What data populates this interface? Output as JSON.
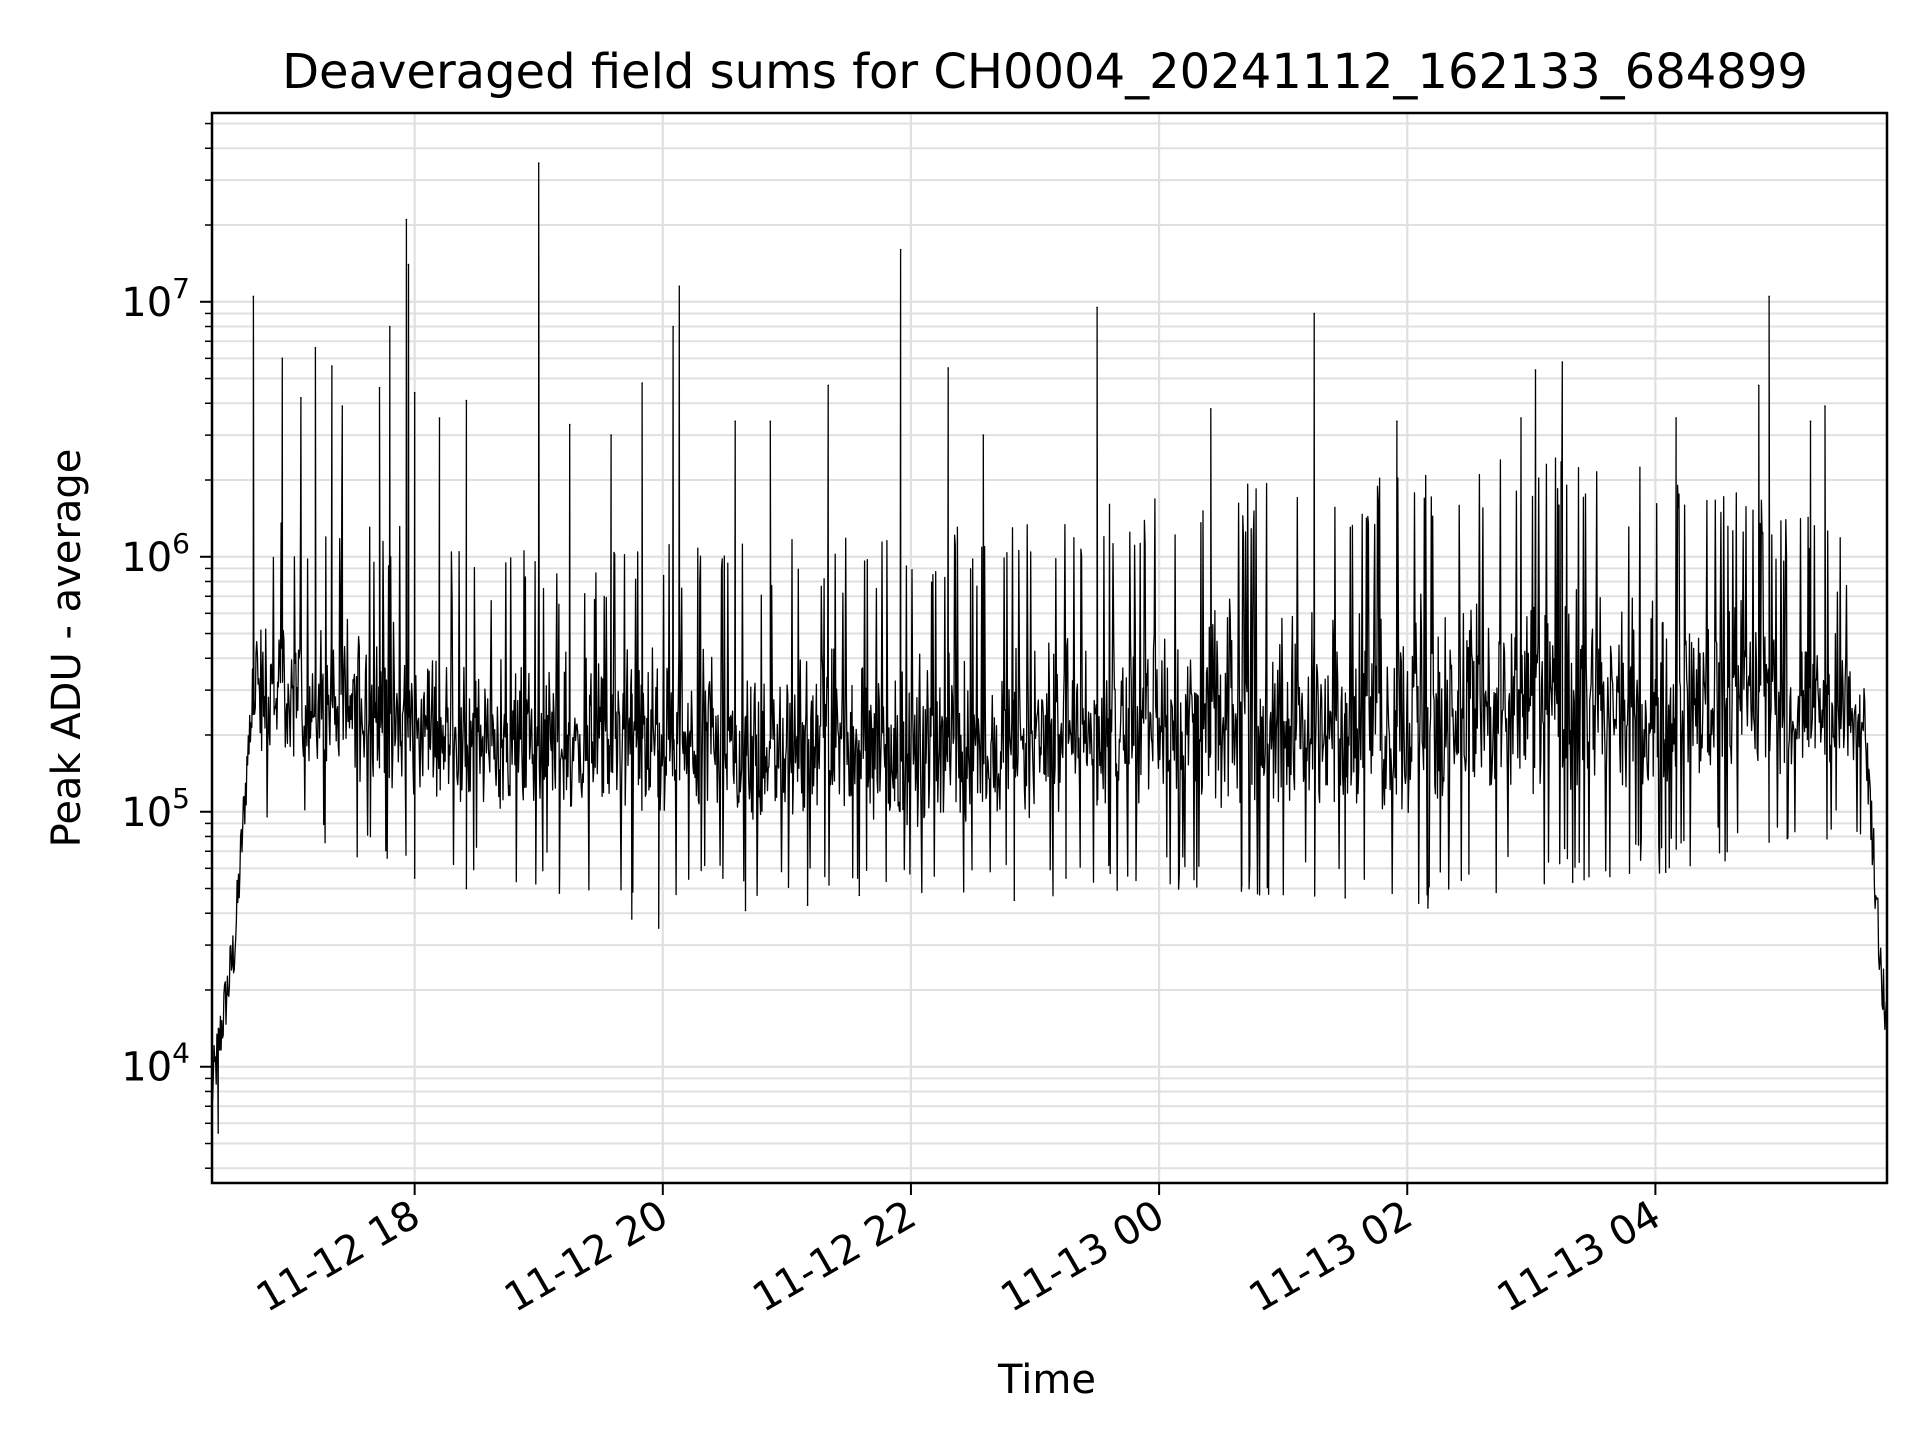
{
  "chart_data": {
    "type": "line",
    "title": "Deaveraged field sums for CH0004_20241112_162133_684899",
    "xlabel": "Time",
    "ylabel": "Peak ADU - average",
    "yscale": "log",
    "ylim": [
      3500,
      55000000
    ],
    "xlim": [
      "2024-11-12 16:22",
      "2024-11-13 05:52"
    ],
    "grid": true,
    "line_color": "#000000",
    "grid_color": "#e0e0e0",
    "x_ticks": [
      {
        "value": "2024-11-12 18:00",
        "label": "11-12 18"
      },
      {
        "value": "2024-11-12 20:00",
        "label": "11-12 20"
      },
      {
        "value": "2024-11-12 22:00",
        "label": "11-12 22"
      },
      {
        "value": "2024-11-13 00:00",
        "label": "11-13 00"
      },
      {
        "value": "2024-11-13 02:00",
        "label": "11-13 02"
      },
      {
        "value": "2024-11-13 04:00",
        "label": "11-13 04"
      }
    ],
    "y_ticks": [
      {
        "value": 10000,
        "base": "10",
        "exp": "4"
      },
      {
        "value": 100000,
        "base": "10",
        "exp": "5"
      },
      {
        "value": 1000000,
        "base": "10",
        "exp": "6"
      },
      {
        "value": 10000000,
        "base": "10",
        "exp": "7"
      }
    ],
    "series": [
      {
        "baseline": [
          [
            "2024-11-12 16:22",
            8000
          ],
          [
            "2024-11-12 16:27",
            15000
          ],
          [
            "2024-11-12 16:33",
            30000
          ],
          [
            "2024-11-12 16:40",
            200000
          ],
          [
            "2024-11-12 16:50",
            450000
          ],
          [
            "2024-11-12 17:00",
            420000
          ],
          [
            "2024-11-12 17:20",
            350000
          ],
          [
            "2024-11-12 17:45",
            280000
          ],
          [
            "2024-11-12 18:00",
            230000
          ],
          [
            "2024-11-12 18:40",
            200000
          ],
          [
            "2024-11-12 19:20",
            210000
          ],
          [
            "2024-11-12 19:50",
            190000
          ],
          [
            "2024-11-12 20:30",
            170000
          ],
          [
            "2024-11-12 21:30",
            160000
          ],
          [
            "2024-11-12 22:30",
            165000
          ],
          [
            "2024-11-12 23:30",
            190000
          ],
          [
            "2024-11-13 00:00",
            230000
          ],
          [
            "2024-11-13 01:00",
            220000
          ],
          [
            "2024-11-13 02:00",
            230000
          ],
          [
            "2024-11-13 03:00",
            240000
          ],
          [
            "2024-11-13 04:00",
            260000
          ],
          [
            "2024-11-13 05:00",
            290000
          ],
          [
            "2024-11-13 05:35",
            420000
          ],
          [
            "2024-11-13 05:40",
            300000
          ],
          [
            "2024-11-13 05:45",
            80000
          ],
          [
            "2024-11-13 05:49",
            25000
          ],
          [
            "2024-11-13 05:52",
            13000
          ]
        ],
        "upper_envelope": [
          [
            "2024-11-12 16:40",
            900000
          ],
          [
            "2024-11-12 17:30",
            1000000
          ],
          [
            "2024-11-12 18:30",
            600000
          ],
          [
            "2024-11-12 20:00",
            700000
          ],
          [
            "2024-11-12 22:00",
            700000
          ],
          [
            "2024-11-12 23:30",
            900000
          ],
          [
            "2024-11-13 00:30",
            1100000
          ],
          [
            "2024-11-13 02:00",
            1300000
          ],
          [
            "2024-11-13 03:00",
            1400000
          ],
          [
            "2024-11-13 04:30",
            1200000
          ],
          [
            "2024-11-13 05:30",
            700000
          ]
        ],
        "lower_envelope": [
          [
            "2024-11-12 16:45",
            120000
          ],
          [
            "2024-11-12 18:00",
            80000
          ],
          [
            "2024-11-12 20:00",
            65000
          ],
          [
            "2024-11-12 22:00",
            60000
          ],
          [
            "2024-11-13 00:00",
            70000
          ],
          [
            "2024-11-13 02:00",
            60000
          ],
          [
            "2024-11-13 04:00",
            80000
          ],
          [
            "2024-11-13 05:30",
            110000
          ]
        ],
        "spikes": [
          [
            "2024-11-12 16:42",
            10500000
          ],
          [
            "2024-11-12 16:56",
            6000000
          ],
          [
            "2024-11-12 17:05",
            4200000
          ],
          [
            "2024-11-12 17:12",
            6600000
          ],
          [
            "2024-11-12 17:20",
            5600000
          ],
          [
            "2024-11-12 17:25",
            3900000
          ],
          [
            "2024-11-12 17:43",
            4600000
          ],
          [
            "2024-11-12 17:48",
            8000000
          ],
          [
            "2024-11-12 17:56",
            21000000
          ],
          [
            "2024-11-12 17:57",
            14000000
          ],
          [
            "2024-11-12 18:00",
            4400000
          ],
          [
            "2024-11-12 18:12",
            3500000
          ],
          [
            "2024-11-12 18:25",
            4100000
          ],
          [
            "2024-11-12 19:00",
            35000000
          ],
          [
            "2024-11-12 19:15",
            3300000
          ],
          [
            "2024-11-12 19:35",
            3000000
          ],
          [
            "2024-11-12 19:50",
            4800000
          ],
          [
            "2024-11-12 20:05",
            8000000
          ],
          [
            "2024-11-12 20:08",
            11500000
          ],
          [
            "2024-11-12 20:35",
            3400000
          ],
          [
            "2024-11-12 20:52",
            3400000
          ],
          [
            "2024-11-12 21:20",
            4700000
          ],
          [
            "2024-11-12 21:55",
            16000000
          ],
          [
            "2024-11-12 22:18",
            5500000
          ],
          [
            "2024-11-12 22:35",
            3000000
          ],
          [
            "2024-11-12 23:30",
            9500000
          ],
          [
            "2024-11-13 00:25",
            3800000
          ],
          [
            "2024-11-13 01:15",
            9000000
          ],
          [
            "2024-11-13 01:55",
            3400000
          ],
          [
            "2024-11-13 02:55",
            3500000
          ],
          [
            "2024-11-13 03:02",
            5400000
          ],
          [
            "2024-11-13 03:15",
            5800000
          ],
          [
            "2024-11-13 04:10",
            3500000
          ],
          [
            "2024-11-13 04:50",
            4700000
          ],
          [
            "2024-11-13 04:55",
            10500000
          ],
          [
            "2024-11-13 05:15",
            3400000
          ],
          [
            "2024-11-13 05:22",
            3900000
          ]
        ],
        "dips": [
          [
            "2024-11-12 16:25",
            5500
          ],
          [
            "2024-11-12 18:00",
            55000
          ],
          [
            "2024-11-12 18:25",
            50000
          ],
          [
            "2024-11-12 19:10",
            48000
          ],
          [
            "2024-11-12 19:45",
            38000
          ],
          [
            "2024-11-12 19:58",
            35000
          ],
          [
            "2024-11-12 20:40",
            41000
          ],
          [
            "2024-11-12 21:10",
            43000
          ],
          [
            "2024-11-12 21:35",
            47000
          ],
          [
            "2024-11-12 22:50",
            45000
          ],
          [
            "2024-11-12 23:15",
            55000
          ],
          [
            "2024-11-13 00:40",
            52000
          ],
          [
            "2024-11-13 01:30",
            46000
          ],
          [
            "2024-11-13 02:10",
            42000
          ],
          [
            "2024-11-13 03:20",
            53000
          ],
          [
            "2024-11-13 04:05",
            58000
          ]
        ]
      }
    ]
  }
}
